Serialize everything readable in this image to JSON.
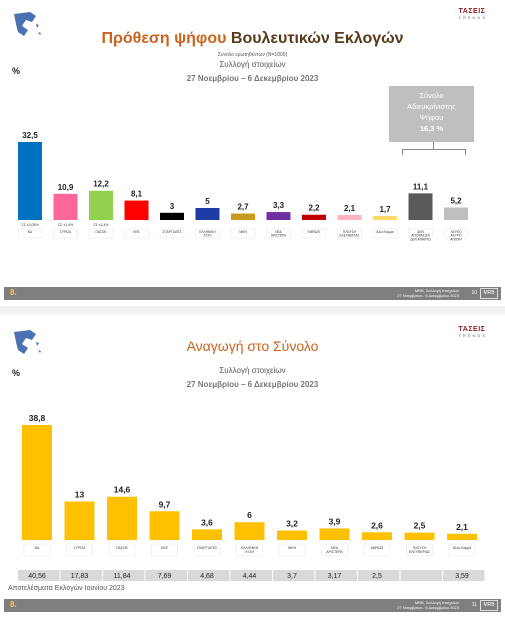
{
  "slide1": {
    "title_accent": "Πρόθεση ψήφου",
    "title_rest": "Βουλευτικών Εκλογών",
    "sample_note": "Σύνολο ερωτηθέντων (Ν=1000)",
    "subtitle": "Συλλογή στοιχείων",
    "date_range": "27 Νοεμβρίου – 6 Δεκεμβρίου 2023",
    "y_unit": "%",
    "callout": [
      "Σύνολο",
      "Αδιευκρίνιστης",
      "Ψήφου",
      "16,3 %"
    ],
    "footer_page": "8.",
    "footer_meta": [
      "MRB, Συλλογή στοιχείων",
      "27 Νοεμβρίου - 6 Δεκεμβρίου 2023"
    ],
    "footer_num": "10"
  },
  "slide2": {
    "title": "Αναγωγή στο Σύνολο",
    "subtitle": "Συλλογή στοιχείων",
    "date_range": "27 Νοεμβρίου – 6 Δεκεμβρίου 2023",
    "y_unit": "%",
    "election_note": "Αποτελέσματα Εκλογών Ιουνίου 2023",
    "footer_page": "8.",
    "footer_meta": [
      "MRB, Συλλογή στοιχείων",
      "27 Νοεμβρίου - 6 Δεκεμβρίου 2023"
    ],
    "footer_num": "11"
  },
  "logo": {
    "name": "ΤΑΣΕΙΣ",
    "tag": "TRENDS"
  },
  "colors": {
    "accent": "#c8641e",
    "bar2": "#ffc000",
    "footer": "#7f7f7f"
  },
  "chart_data": [
    {
      "type": "bar",
      "title": "Πρόθεση ψήφου Βουλευτικών Εκλογών",
      "categories": [
        "ΝΔ",
        "ΣΥΡΙΖΑ",
        "ΠΑΣΟΚ",
        "ΚΚΕ",
        "ΣΠΑΡΤΙΑΤΕΣ",
        "ΕΛΛΗΝΙΚΗ ΛΥΣΗ",
        "ΝΙΚΗ",
        "ΝΕΑ ΑΡΙΣΤΕΡΑ",
        "ΜέΡΑ25",
        "ΠΛΕΥΣΗ ΕΛΕΥΘΕΡΙΑΣ",
        "Άλλο Κόμμα",
        "ΔΕΝ ΑΠΟΦΑΣΙΣΑ/ΔΕΝ ΑΠΑΝΤΩ",
        "ΛΕΥΚΟ ΑΚΥΡΟ ΑΠΟΧΗ"
      ],
      "values": [
        32.5,
        10.9,
        12.2,
        8.1,
        3,
        5,
        2.7,
        3.3,
        2.2,
        2.1,
        1.7,
        11.1,
        5.2
      ],
      "value_labels": [
        "32,5",
        "10,9",
        "12,2",
        "8,1",
        "3",
        "5",
        "2,7",
        "3,3",
        "2,2",
        "2,1",
        "1,7",
        "11,1",
        "5,2"
      ],
      "colors": [
        "#0070c0",
        "#ff6699",
        "#92d050",
        "#ff0000",
        "#000000",
        "#1f3ca6",
        "#c89a1e",
        "#7030a0",
        "#c00000",
        "#ffb3c1",
        "#ffd966",
        "#595959",
        "#bfbfbf"
      ],
      "margins": [
        "ΣΣ ±2,05%",
        "ΣΣ ±1,4%",
        "ΣΣ ±1,4%"
      ],
      "ylim": [
        0,
        35
      ]
    },
    {
      "type": "bar",
      "title": "Αναγωγή στο Σύνολο",
      "categories": [
        "ΝΔ",
        "ΣΥΡΙΖΑ",
        "ΠΑΣΟΚ",
        "ΚΚΕ",
        "ΣΠΑΡΤΙΑΤΕΣ",
        "ΕΛΛΗΝΙΚΗ ΛΥΣΗ",
        "ΝΙΚΗ",
        "ΝΕΑ ΑΡΙΣΤΕΡΑ",
        "ΜέΡΑ25",
        "ΠΛΕΥΣΗ ΕΛΕΥΘΕΡΙΑΣ",
        "Άλλο Κόμμα"
      ],
      "values": [
        38.8,
        13,
        14.6,
        9.7,
        3.6,
        6,
        3.2,
        3.9,
        2.6,
        2.5,
        2.1
      ],
      "value_labels": [
        "38,8",
        "13",
        "14,6",
        "9,7",
        "3,6",
        "6",
        "3,2",
        "3,9",
        "2,6",
        "2,5",
        "2,1"
      ],
      "election_results": [
        "40,56",
        "17,83",
        "11,84",
        "7,69",
        "4,68",
        "4,44",
        "3,7",
        "3,17",
        "2,5",
        "",
        "3,59"
      ],
      "ylim": [
        0,
        40
      ]
    }
  ]
}
